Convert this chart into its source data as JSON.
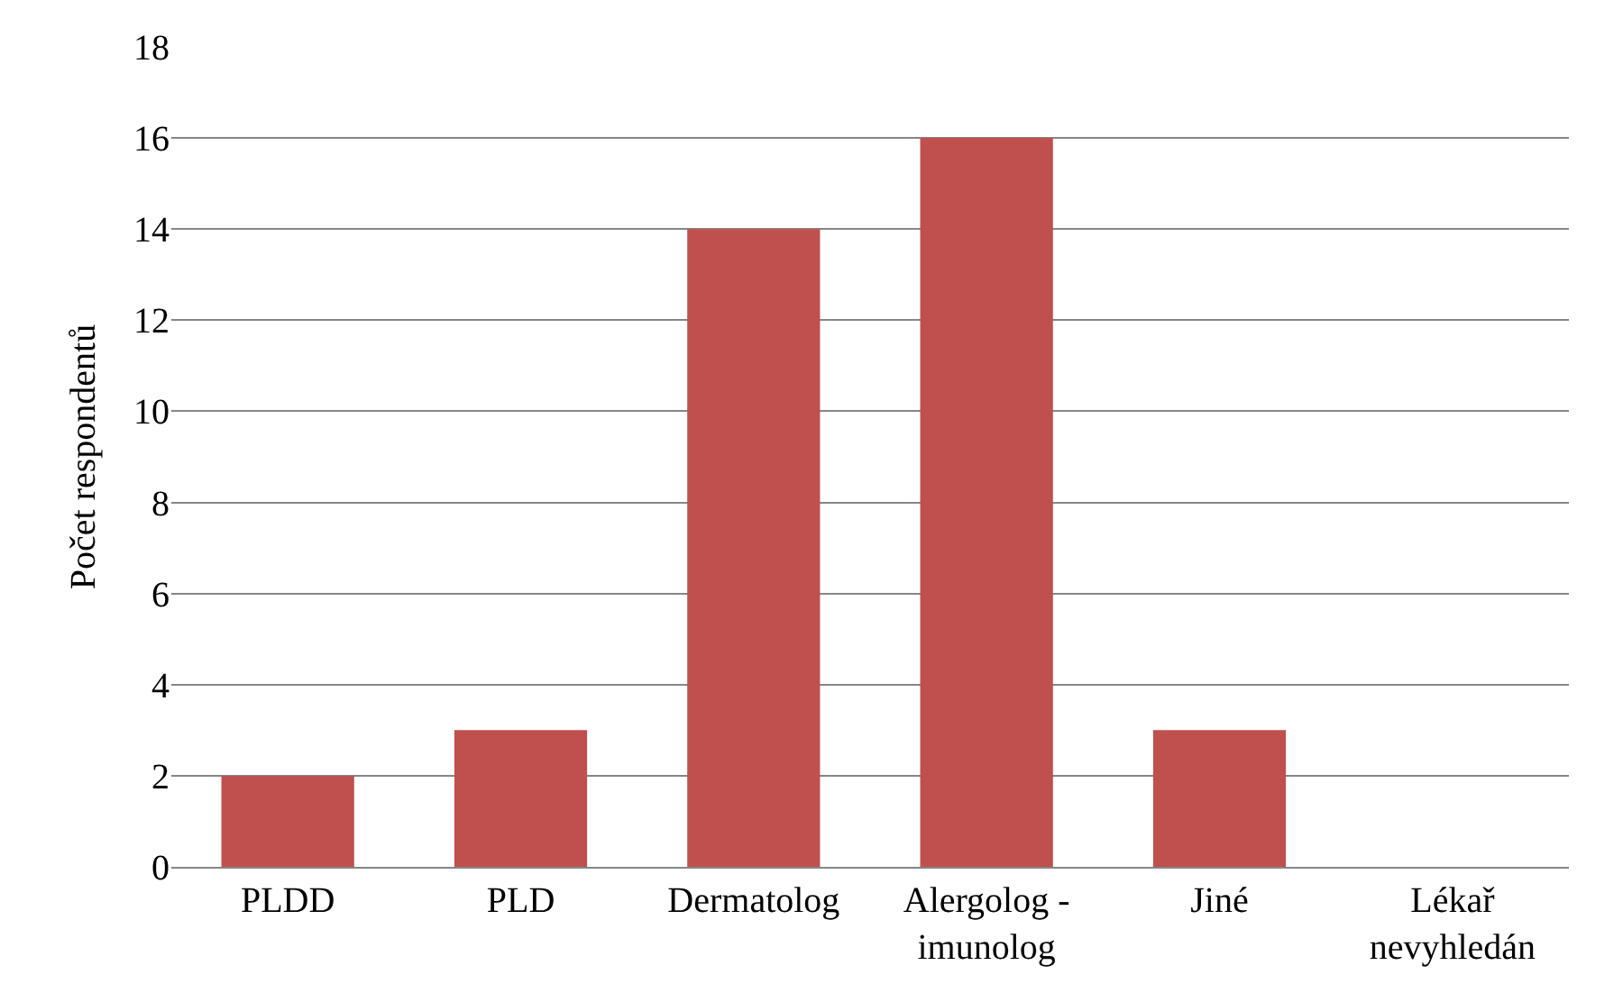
{
  "chart_data": {
    "type": "bar",
    "ylabel": "Počet respondentů",
    "categories": [
      "PLDD",
      "PLD",
      "Dermatolog",
      "Alergolog - imunolog",
      "Jiné",
      "Lékař nevyhledán"
    ],
    "values": [
      2,
      3,
      14,
      16,
      3,
      0
    ],
    "color": "#c0504d",
    "ylim": [
      0,
      18
    ],
    "yticks": [
      0,
      2,
      4,
      6,
      8,
      10,
      12,
      14,
      16,
      18
    ],
    "grid": "y",
    "legend": false
  }
}
